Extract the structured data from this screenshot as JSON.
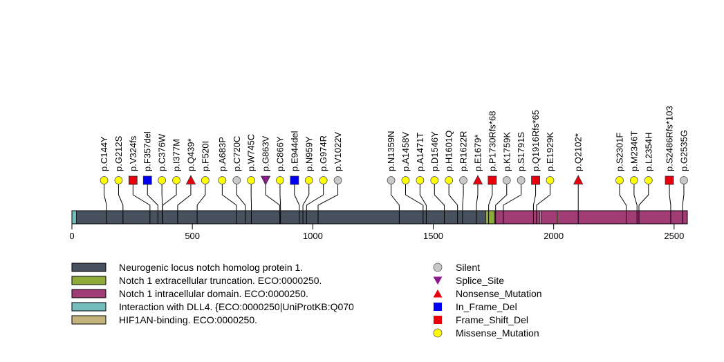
{
  "chart_data": {
    "type": "lollipop",
    "title": "",
    "protein_length": 2555,
    "xlim": [
      0,
      2555
    ],
    "x_ticks": [
      0,
      500,
      1000,
      1500,
      2000,
      2500
    ],
    "x_tick_labels": [
      "0",
      "500",
      "1000",
      "1500",
      "2000",
      "2500"
    ],
    "domains": [
      {
        "name": "Neurogenic locus notch homolog protein 1.",
        "start": 18,
        "end": 1718,
        "color": "#48525f"
      },
      {
        "name": "Notch 1 extracellular truncation. ECO:0000250.",
        "start": 1718,
        "end": 1754,
        "color": "#8fab3a"
      },
      {
        "name": "Notch 1 intracellular domain. ECO:0000250.",
        "start": 1754,
        "end": 2555,
        "color": "#a13c74"
      },
      {
        "name": "Interaction with DLL4. {ECO:0000250|UniProtKB:Q070",
        "start": 0,
        "end": 18,
        "color": "#74bdbd"
      },
      {
        "name": "HIF1AN-binding. ECO:0000250.",
        "segments": [
          [
            1943,
            1947
          ],
          [
            2013,
            2017
          ]
        ],
        "color": "#c4b37a"
      }
    ],
    "mutation_types": [
      {
        "name": "Silent",
        "shape": "circle",
        "color": "#c8c8c8"
      },
      {
        "name": "Splice_Site",
        "shape": "triangle-down",
        "color": "#8b1a8b"
      },
      {
        "name": "Nonsense_Mutation",
        "shape": "triangle-up",
        "color": "#e8000b"
      },
      {
        "name": "In_Frame_Del",
        "shape": "square",
        "color": "#0000f0"
      },
      {
        "name": "Frame_Shift_Del",
        "shape": "square",
        "color": "#e8000b"
      },
      {
        "name": "Missense_Mutation",
        "shape": "circle",
        "color": "#ffff00"
      }
    ],
    "mutations": [
      {
        "label": "p.C144Y",
        "pos": 144,
        "type": "Missense_Mutation"
      },
      {
        "label": "p.G212S",
        "pos": 212,
        "type": "Missense_Mutation"
      },
      {
        "label": "p.V324fs",
        "pos": 324,
        "type": "Frame_Shift_Del"
      },
      {
        "label": "p.F357del",
        "pos": 357,
        "type": "In_Frame_Del"
      },
      {
        "label": "p.C376W",
        "pos": 376,
        "type": "Missense_Mutation"
      },
      {
        "label": "p.I377M",
        "pos": 377,
        "type": "Missense_Mutation"
      },
      {
        "label": "p.Q439*",
        "pos": 439,
        "type": "Nonsense_Mutation"
      },
      {
        "label": "p.F520I",
        "pos": 520,
        "type": "Missense_Mutation"
      },
      {
        "label": "p.A683P",
        "pos": 683,
        "type": "Missense_Mutation"
      },
      {
        "label": "p.C720C",
        "pos": 720,
        "type": "Silent"
      },
      {
        "label": "p.W745C",
        "pos": 745,
        "type": "Missense_Mutation"
      },
      {
        "label": "p.G863V",
        "pos": 863,
        "type": "Splice_Site"
      },
      {
        "label": "p.C866Y",
        "pos": 866,
        "type": "Missense_Mutation"
      },
      {
        "label": "p.E944del",
        "pos": 944,
        "type": "In_Frame_Del"
      },
      {
        "label": "p.N959Y",
        "pos": 959,
        "type": "Missense_Mutation"
      },
      {
        "label": "p.G974R",
        "pos": 974,
        "type": "Missense_Mutation"
      },
      {
        "label": "p.V1022V",
        "pos": 1022,
        "type": "Silent"
      },
      {
        "label": "p.N1359N",
        "pos": 1359,
        "type": "Silent"
      },
      {
        "label": "p.A1458V",
        "pos": 1458,
        "type": "Missense_Mutation"
      },
      {
        "label": "p.A1471T",
        "pos": 1471,
        "type": "Missense_Mutation"
      },
      {
        "label": "p.D1546Y",
        "pos": 1546,
        "type": "Missense_Mutation"
      },
      {
        "label": "p.H1601Q",
        "pos": 1601,
        "type": "Missense_Mutation"
      },
      {
        "label": "p.R1622R",
        "pos": 1622,
        "type": "Silent"
      },
      {
        "label": "p.E1679*",
        "pos": 1679,
        "type": "Nonsense_Mutation"
      },
      {
        "label": "p.P1730Rfs*68",
        "pos": 1730,
        "type": "Frame_Shift_Del"
      },
      {
        "label": "p.K1759K",
        "pos": 1759,
        "type": "Silent"
      },
      {
        "label": "p.S1791S",
        "pos": 1791,
        "type": "Silent"
      },
      {
        "label": "p.Q1916Rfs*65",
        "pos": 1916,
        "type": "Frame_Shift_Del"
      },
      {
        "label": "p.E1929K",
        "pos": 1929,
        "type": "Missense_Mutation"
      },
      {
        "label": "p.Q2102*",
        "pos": 2102,
        "type": "Nonsense_Mutation"
      },
      {
        "label": "p.S2301F",
        "pos": 2301,
        "type": "Missense_Mutation"
      },
      {
        "label": "p.M2346T",
        "pos": 2346,
        "type": "Missense_Mutation"
      },
      {
        "label": "p.L2354H",
        "pos": 2354,
        "type": "Missense_Mutation"
      },
      {
        "label": "p.S2486Rfs*103",
        "pos": 2486,
        "type": "Frame_Shift_Del"
      },
      {
        "label": "p.G2535G",
        "pos": 2535,
        "type": "Silent"
      }
    ],
    "legend_domains_placement": "bottom-left",
    "legend_types_placement": "bottom-center"
  }
}
